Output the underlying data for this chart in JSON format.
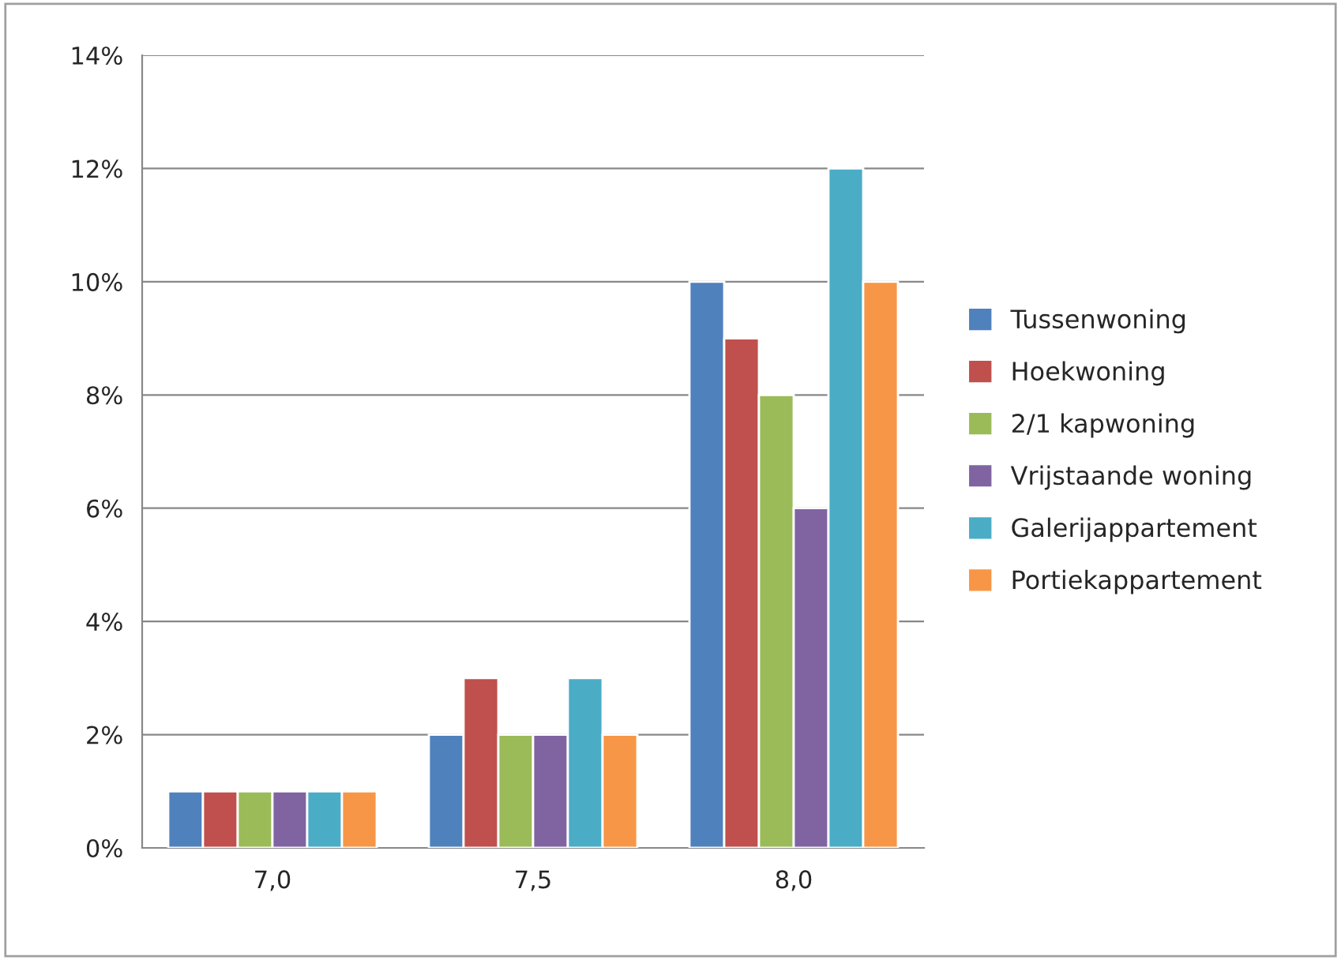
{
  "chart_data": {
    "type": "bar",
    "categories": [
      "7,0",
      "7,5",
      "8,0"
    ],
    "series": [
      {
        "name": "Tussenwoning",
        "color": "#4f81bd",
        "values": [
          1,
          2,
          10
        ]
      },
      {
        "name": "Hoekwoning",
        "color": "#c0504d",
        "values": [
          1,
          3,
          9
        ]
      },
      {
        "name": "2/1 kapwoning",
        "color": "#9bbb59",
        "values": [
          1,
          2,
          8
        ]
      },
      {
        "name": "Vrijstaande woning",
        "color": "#8064a2",
        "values": [
          1,
          2,
          6
        ]
      },
      {
        "name": "Galerijappartement",
        "color": "#4bacc6",
        "values": [
          1,
          3,
          12
        ]
      },
      {
        "name": "Portiekappartement",
        "color": "#f79646",
        "values": [
          1,
          2,
          10
        ]
      }
    ],
    "ylim": [
      0,
      14
    ],
    "yticks": [
      {
        "value": 0,
        "label": "0%"
      },
      {
        "value": 2,
        "label": "2%"
      },
      {
        "value": 4,
        "label": "4%"
      },
      {
        "value": 6,
        "label": "6%"
      },
      {
        "value": 8,
        "label": "8%"
      },
      {
        "value": 10,
        "label": "10%"
      },
      {
        "value": 12,
        "label": "12%"
      },
      {
        "value": 14,
        "label": "14%"
      }
    ],
    "grid": "y",
    "legend": "right"
  }
}
